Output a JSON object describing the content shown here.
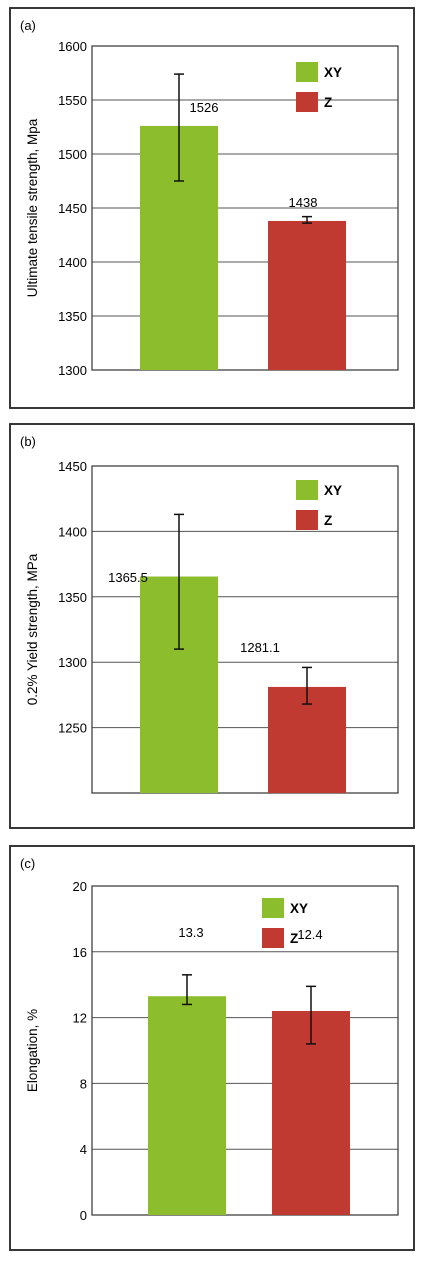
{
  "colors": {
    "xy": "#8cbd2c",
    "z": "#c03a32",
    "frame": "#222222",
    "grid": "#555555"
  },
  "chart_data": [
    {
      "type": "bar",
      "panel_label": "(a)",
      "categories": [
        "XY",
        "Z"
      ],
      "values": [
        1526,
        1438
      ],
      "value_labels": [
        "1526",
        "1438"
      ],
      "error": [
        [
          1475,
          1574
        ],
        [
          1436,
          1442
        ]
      ],
      "ylabel": "Ultimate tensile strength, Mpa",
      "ylim": [
        1300,
        1600
      ],
      "yticks": [
        1300,
        1350,
        1400,
        1450,
        1500,
        1550,
        1600
      ],
      "grid": true,
      "legend": {
        "placement": "top-right",
        "entries": [
          "XY",
          "Z"
        ]
      }
    },
    {
      "type": "bar",
      "panel_label": "(b)",
      "categories": [
        "XY",
        "Z"
      ],
      "values": [
        1365.5,
        1281.1
      ],
      "value_labels": [
        "1365.5",
        "1281.1"
      ],
      "error": [
        [
          1310,
          1413
        ],
        [
          1268,
          1296
        ]
      ],
      "ylabel": "0.2% Yield strength, MPa",
      "ylim": [
        1200,
        1450
      ],
      "yticks": [
        1250,
        1300,
        1350,
        1400,
        1450
      ],
      "grid": true,
      "legend": {
        "placement": "top-right",
        "entries": [
          "XY",
          "Z"
        ]
      }
    },
    {
      "type": "bar",
      "panel_label": "(c)",
      "categories": [
        "XY",
        "Z"
      ],
      "values": [
        13.3,
        12.4
      ],
      "value_labels": [
        "13.3",
        "12.4"
      ],
      "error": [
        [
          12.8,
          14.6
        ],
        [
          10.4,
          13.9
        ]
      ],
      "ylabel": "Elongation, %",
      "ylim": [
        0,
        20
      ],
      "yticks": [
        0,
        4,
        8,
        12,
        16,
        20
      ],
      "grid": true,
      "legend": {
        "placement": "top-right",
        "entries": [
          "XY",
          "Z"
        ]
      }
    }
  ]
}
